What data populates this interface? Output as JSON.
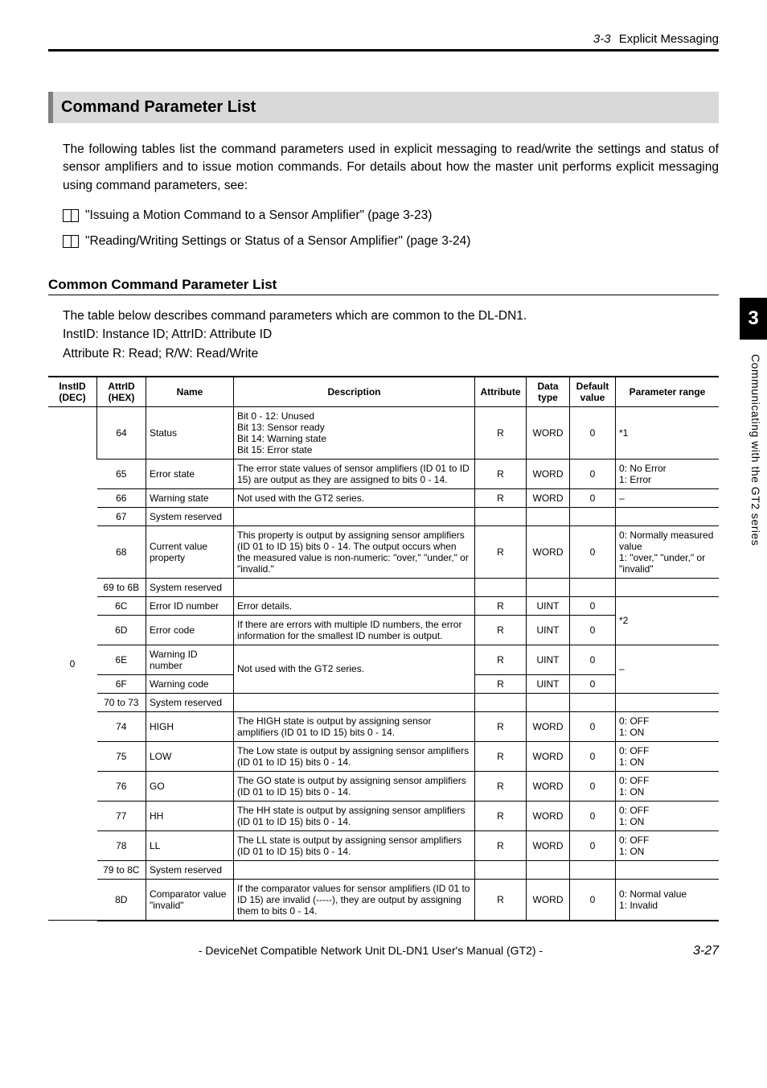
{
  "header": {
    "section_number": "3-3",
    "section_title": "Explicit Messaging"
  },
  "side_tab": {
    "chapter": "3",
    "caption": "Communicating with the GT2 series"
  },
  "h2": "Command Parameter List",
  "intro_paragraph": "The following tables list the command parameters used in explicit messaging to read/write the settings and status of sensor amplifiers and to issue motion commands. For details about how the master unit performs explicit messaging using command parameters, see:",
  "xrefs": [
    "\"Issuing a Motion Command to a Sensor Amplifier\" (page 3-23)",
    "\"Reading/Writing Settings or Status of a Sensor Amplifier\" (page 3-24)"
  ],
  "h3": "Common Command Parameter List",
  "table_intro_lines": [
    "The table below describes command parameters which are common to the DL-DN1.",
    "InstID: Instance ID; AttrID: Attribute ID",
    "Attribute R: Read; R/W: Read/Write"
  ],
  "table": {
    "columns": [
      "InstID (DEC)",
      "AttrID (HEX)",
      "Name",
      "Description",
      "Attribute",
      "Data type",
      "Default value",
      "Parameter range"
    ],
    "inst_id": "0",
    "rows": [
      {
        "attr": "64",
        "name": "Status",
        "desc": "Bit 0 - 12: Unused\nBit 13: Sensor ready\nBit 14: Warning state\nBit 15: Error state",
        "attribute": "R",
        "dtype": "WORD",
        "default": "0",
        "range": "*1"
      },
      {
        "attr": "65",
        "name": "Error state",
        "desc": "The error state values of sensor amplifiers (ID 01 to ID 15) are output as they are assigned to bits 0 - 14.",
        "attribute": "R",
        "dtype": "WORD",
        "default": "0",
        "range": "0: No Error\n1: Error"
      },
      {
        "attr": "66",
        "name": "Warning state",
        "desc": "Not used with the GT2 series.",
        "attribute": "R",
        "dtype": "WORD",
        "default": "0",
        "range": "–"
      },
      {
        "attr": "67",
        "name": "System reserved",
        "desc": "",
        "attribute": "",
        "dtype": "",
        "default": "",
        "range": ""
      },
      {
        "attr": "68",
        "name": "Current value property",
        "desc": "This property is output by assigning sensor amplifiers (ID 01 to ID 15) bits 0 - 14. The output occurs when the measured value is non-numeric: \"over,\" \"under,\" or \"invalid.\"",
        "attribute": "R",
        "dtype": "WORD",
        "default": "0",
        "range": "0: Normally measured value\n1: \"over,\" \"under,\" or \"invalid\""
      },
      {
        "attr": "69 to 6B",
        "name": "System reserved",
        "desc": "",
        "attribute": "",
        "dtype": "",
        "default": "",
        "range": ""
      },
      {
        "attr": "6C",
        "name": "Error ID number",
        "desc": "Error details.",
        "attribute": "R",
        "dtype": "UINT",
        "default": "0",
        "range_rowspan": 2,
        "range": "*2"
      },
      {
        "attr": "6D",
        "name": "Error code",
        "desc": "If there are errors with multiple ID numbers, the error information for the smallest ID number is output.",
        "attribute": "R",
        "dtype": "UINT",
        "default": "0"
      },
      {
        "attr": "6E",
        "name": "Warning ID number",
        "desc_rowspan": 2,
        "desc": "Not used with the GT2 series.",
        "attribute": "R",
        "dtype": "UINT",
        "default": "0",
        "range_rowspan": 2,
        "range": "–"
      },
      {
        "attr": "6F",
        "name": "Warning code",
        "attribute": "R",
        "dtype": "UINT",
        "default": "0"
      },
      {
        "attr": "70 to 73",
        "name": "System reserved",
        "desc": "",
        "attribute": "",
        "dtype": "",
        "default": "",
        "range": ""
      },
      {
        "attr": "74",
        "name": "HIGH",
        "desc": "The HIGH state is output by assigning sensor amplifiers (ID 01 to ID 15) bits 0 - 14.",
        "attribute": "R",
        "dtype": "WORD",
        "default": "0",
        "range": "0: OFF\n1: ON"
      },
      {
        "attr": "75",
        "name": "LOW",
        "desc": "The Low state is output by assigning sensor amplifiers (ID 01 to ID 15) bits 0 - 14.",
        "attribute": "R",
        "dtype": "WORD",
        "default": "0",
        "range": "0: OFF\n1: ON"
      },
      {
        "attr": "76",
        "name": "GO",
        "desc": "The GO state is output by assigning sensor amplifiers (ID 01 to ID 15) bits 0 - 14.",
        "attribute": "R",
        "dtype": "WORD",
        "default": "0",
        "range": "0: OFF\n1: ON"
      },
      {
        "attr": "77",
        "name": "HH",
        "desc": "The HH state is output by assigning sensor amplifiers (ID 01 to ID 15) bits 0 - 14.",
        "attribute": "R",
        "dtype": "WORD",
        "default": "0",
        "range": "0: OFF\n1: ON"
      },
      {
        "attr": "78",
        "name": "LL",
        "desc": "The LL state is output by assigning sensor amplifiers (ID 01 to ID 15) bits 0 - 14.",
        "attribute": "R",
        "dtype": "WORD",
        "default": "0",
        "range": "0: OFF\n1: ON"
      },
      {
        "attr": "79 to 8C",
        "name": "System reserved",
        "desc": "",
        "attribute": "",
        "dtype": "",
        "default": "",
        "range": ""
      },
      {
        "attr": "8D",
        "name": "Comparator value \"invalid\"",
        "desc": "If the comparator values for sensor amplifiers (ID 01 to ID 15) are invalid (-----), they are output by assigning them to bits 0 - 14.",
        "attribute": "R",
        "dtype": "WORD",
        "default": "0",
        "range": "0: Normal value\n1: Invalid"
      }
    ]
  },
  "footer": {
    "manual_title": "- DeviceNet Compatible Network Unit DL-DN1 User's Manual (GT2) -",
    "page_number": "3-27"
  }
}
